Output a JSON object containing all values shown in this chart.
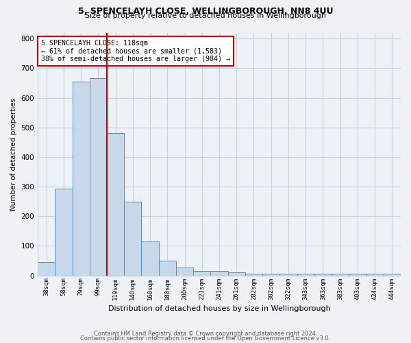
{
  "title1": "5, SPENCELAYH CLOSE, WELLINGBOROUGH, NN8 4UU",
  "title2": "Size of property relative to detached houses in Wellingborough",
  "xlabel": "Distribution of detached houses by size in Wellingborough",
  "ylabel": "Number of detached properties",
  "categories": [
    "38sqm",
    "58sqm",
    "79sqm",
    "99sqm",
    "119sqm",
    "140sqm",
    "160sqm",
    "180sqm",
    "200sqm",
    "221sqm",
    "241sqm",
    "261sqm",
    "282sqm",
    "302sqm",
    "322sqm",
    "343sqm",
    "363sqm",
    "383sqm",
    "403sqm",
    "424sqm",
    "444sqm"
  ],
  "values": [
    45,
    293,
    655,
    665,
    480,
    250,
    115,
    50,
    27,
    15,
    15,
    10,
    7,
    7,
    7,
    7,
    7,
    7,
    5,
    7,
    7
  ],
  "bar_color": "#c8d8e8",
  "bar_edge_color": "#5a8ab0",
  "red_line_index": 4,
  "annotation_text": "5 SPENCELAYH CLOSE: 118sqm\n← 61% of detached houses are smaller (1,583)\n38% of semi-detached houses are larger (984) →",
  "annotation_box_color": "#ffffff",
  "annotation_box_edge": "#cc0000",
  "footer1": "Contains HM Land Registry data © Crown copyright and database right 2024.",
  "footer2": "Contains public sector information licensed under the Open Government Licence v3.0.",
  "bg_color": "#eef2f7",
  "grid_color": "#c8d0dc",
  "ylim": [
    0,
    820
  ],
  "yticks": [
    0,
    100,
    200,
    300,
    400,
    500,
    600,
    700,
    800
  ]
}
